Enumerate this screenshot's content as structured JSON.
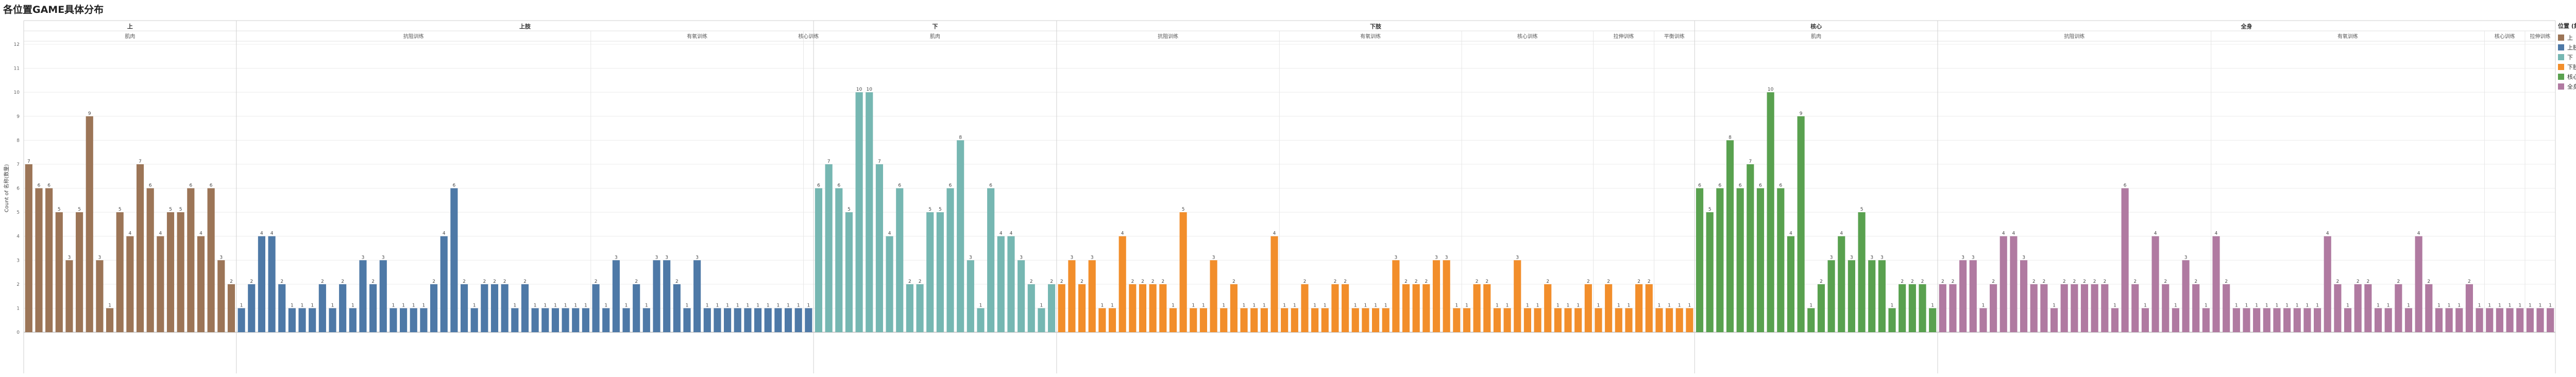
{
  "title": "各位置GAME具体分布",
  "legend": {
    "title": "位置 (集料)"
  },
  "chart_data": {
    "type": "bar",
    "title": "各位置GAME具体分布",
    "ylabel": "Count of 名称(数量)",
    "ylim": [
      0,
      12
    ],
    "yticks": [
      0,
      1,
      2,
      3,
      4,
      5,
      6,
      7,
      8,
      9,
      10,
      11,
      12
    ],
    "grid": true,
    "legend_position": "right",
    "groups": [
      {
        "name": "上",
        "color": "#9C7557",
        "subgroups": [
          {
            "name": "肌肉",
            "values": [
              7,
              6,
              6,
              5,
              3,
              5,
              9,
              3,
              1,
              5,
              4,
              7,
              6,
              4,
              5,
              5,
              6,
              4,
              6,
              3,
              2
            ]
          }
        ]
      },
      {
        "name": "上肢",
        "color": "#4E79A7",
        "subgroups": [
          {
            "name": "抗阻训练",
            "values": [
              1,
              2,
              4,
              4,
              2,
              1,
              1,
              1,
              2,
              1,
              2,
              1,
              3,
              2,
              3,
              1,
              1,
              1,
              1,
              2,
              4,
              6,
              2,
              1,
              2,
              2,
              2,
              1,
              2,
              1,
              1,
              1,
              1,
              1,
              1
            ]
          },
          {
            "name": "有氧训练",
            "values": [
              2,
              1,
              3,
              1,
              2,
              1,
              3,
              3,
              2,
              1,
              3,
              1,
              1,
              1,
              1,
              1,
              1,
              1,
              1,
              1,
              1
            ]
          },
          {
            "name": "核心训练",
            "values": [
              1
            ]
          }
        ]
      },
      {
        "name": "下",
        "color": "#76B7B2",
        "subgroups": [
          {
            "name": "肌肉",
            "values": [
              6,
              7,
              6,
              5,
              10,
              10,
              7,
              4,
              6,
              2,
              2,
              5,
              5,
              6,
              8,
              3,
              1,
              6,
              4,
              4,
              3,
              2,
              1,
              2
            ]
          }
        ]
      },
      {
        "name": "下肢",
        "color": "#F28E2B",
        "subgroups": [
          {
            "name": "抗阻训练",
            "values": [
              2,
              3,
              2,
              3,
              1,
              1,
              4,
              2,
              2,
              2,
              2,
              1,
              5,
              1,
              1,
              3,
              1,
              2,
              1,
              1,
              1,
              4
            ]
          },
          {
            "name": "有氧训练",
            "values": [
              1,
              1,
              2,
              1,
              1,
              2,
              2,
              1,
              1,
              1,
              1,
              3,
              2,
              2,
              2,
              3,
              3,
              1
            ]
          },
          {
            "name": "核心训练",
            "values": [
              1,
              2,
              2,
              1,
              1,
              3,
              1,
              1,
              2,
              1,
              1,
              1,
              2
            ]
          },
          {
            "name": "拉伸训练",
            "values": [
              1,
              2,
              1,
              1,
              2,
              2
            ]
          },
          {
            "name": "平衡训练",
            "values": [
              1,
              1,
              1,
              1
            ]
          }
        ]
      },
      {
        "name": "核心",
        "color": "#59A14F",
        "subgroups": [
          {
            "name": "肌肉",
            "values": [
              6,
              5,
              6,
              8,
              6,
              7,
              6,
              10,
              6,
              4,
              9,
              1,
              2,
              3,
              4,
              3,
              5,
              3,
              3,
              1,
              2,
              2,
              2,
              1
            ]
          }
        ]
      },
      {
        "name": "全身",
        "color": "#B07AA1",
        "subgroups": [
          {
            "name": "抗阻训练",
            "values": [
              2,
              2,
              3,
              3,
              1,
              2,
              4,
              4,
              3,
              2,
              2,
              1,
              2,
              2,
              2,
              2,
              2,
              1,
              6,
              2,
              1,
              4,
              2,
              1,
              3,
              2,
              1
            ]
          },
          {
            "name": "有氧训练",
            "values": [
              4,
              2,
              1,
              1,
              1,
              1,
              1,
              1,
              1,
              1,
              1,
              4,
              2,
              1,
              2,
              2,
              1,
              1,
              2,
              1,
              4,
              2,
              1,
              1,
              1,
              2,
              1
            ]
          },
          {
            "name": "核心训练",
            "values": [
              1,
              1,
              1,
              1
            ]
          },
          {
            "name": "拉伸训练",
            "values": [
              1,
              1,
              1
            ]
          }
        ]
      }
    ]
  }
}
